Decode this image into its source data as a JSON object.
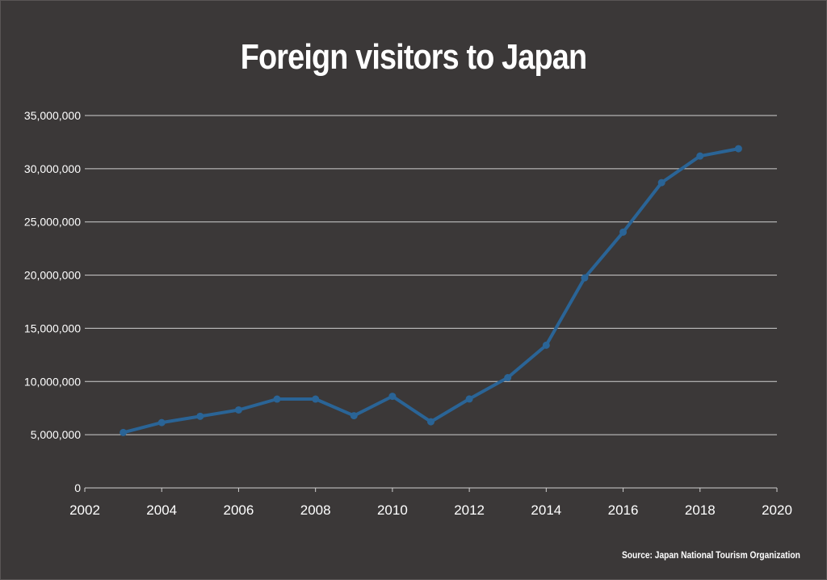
{
  "colors": {
    "background": "#3b3838",
    "text": "#ffffff",
    "gridline": "#d0cfcf",
    "series": "#2a6496"
  },
  "chart_data": {
    "type": "line",
    "title": "Foreign visitors to Japan",
    "source": "Source: Japan National Tourism Organization",
    "xlabel": "",
    "ylabel": "",
    "xlim": [
      2002,
      2020
    ],
    "ylim": [
      0,
      35000000
    ],
    "x_ticks": [
      "2002",
      "2004",
      "2006",
      "2008",
      "2010",
      "2012",
      "2014",
      "2016",
      "2018",
      "2020"
    ],
    "y_ticks": [
      "0",
      "5,000,000",
      "10,000,000",
      "15,000,000",
      "20,000,000",
      "25,000,000",
      "30,000,000",
      "35,000,000"
    ],
    "grid": true,
    "legend": "none",
    "series": [
      {
        "x": [
          2003,
          2004,
          2005,
          2006,
          2007,
          2008,
          2009,
          2010,
          2011,
          2012,
          2013,
          2014,
          2015,
          2016,
          2017,
          2018,
          2019
        ],
        "values": [
          5210000,
          6140000,
          6730000,
          7330000,
          8350000,
          8350000,
          6790000,
          8610000,
          6220000,
          8360000,
          10360000,
          13410000,
          19740000,
          24040000,
          28690000,
          31190000,
          31880000
        ]
      }
    ]
  }
}
